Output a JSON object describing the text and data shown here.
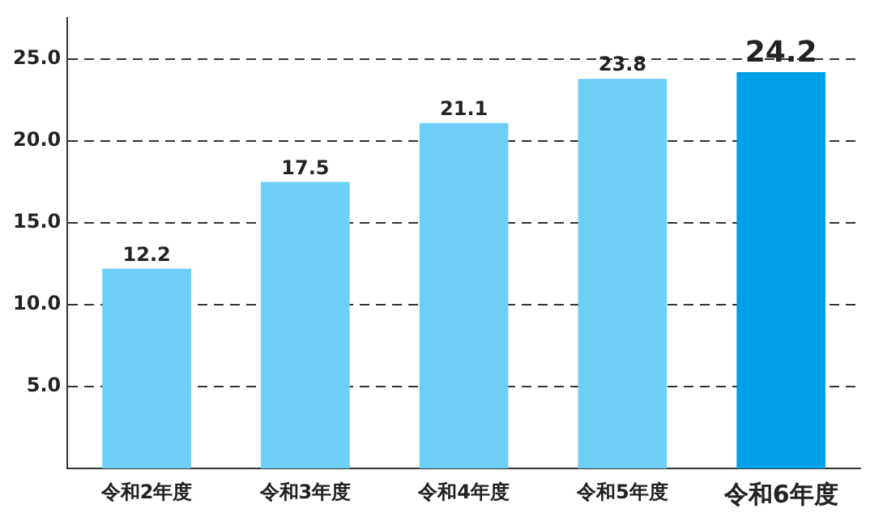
{
  "chart_data": {
    "type": "bar",
    "categories": [
      "令和2年度",
      "令和3年度",
      "令和4年度",
      "令和5年度",
      "令和6年度"
    ],
    "values": [
      12.2,
      17.5,
      21.1,
      23.8,
      24.2
    ],
    "colors": [
      "#6dcff6",
      "#6dcff6",
      "#6dcff6",
      "#6dcff6",
      "#00a0e9"
    ],
    "ylim": [
      0,
      27.5
    ],
    "yticks": [
      {
        "value": 5,
        "label": "5.0"
      },
      {
        "value": 10,
        "label": "10.0"
      },
      {
        "value": 15,
        "label": "15.0"
      },
      {
        "value": 20,
        "label": "20.0"
      },
      {
        "value": 25,
        "label": "25.0"
      }
    ],
    "grid": "y",
    "line_style": "dashed",
    "data_labels": true
  }
}
